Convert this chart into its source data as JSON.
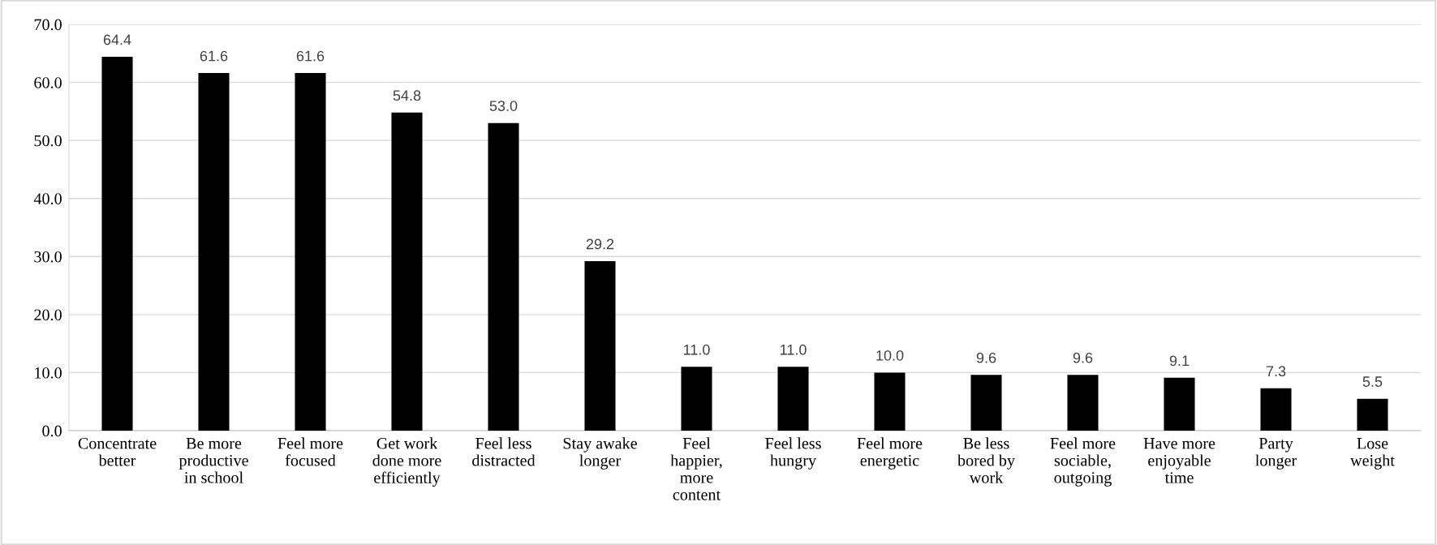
{
  "chart_data": {
    "type": "bar",
    "categories": [
      "Concentrate\nbetter",
      "Be more\nproductive\nin school",
      "Feel more\nfocused",
      "Get work\ndone more\nefficiently",
      "Feel less\ndistracted",
      "Stay awake\nlonger",
      "Feel\nhappier,\nmore\ncontent",
      "Feel less\nhungry",
      "Feel more\nenergetic",
      "Be less\nbored by\nwork",
      "Feel more\nsociable,\noutgoing",
      "Have more\nenjoyable\ntime",
      "Party\nlonger",
      "Lose\nweight"
    ],
    "values": [
      64.4,
      61.6,
      61.6,
      54.8,
      53.0,
      29.2,
      11.0,
      11.0,
      10.0,
      9.6,
      9.6,
      9.1,
      7.3,
      5.5
    ],
    "value_labels": [
      "64.4",
      "61.6",
      "61.6",
      "54.8",
      "53.0",
      "29.2",
      "11.0",
      "11.0",
      "10.0",
      "9.6",
      "9.6",
      "9.1",
      "7.3",
      "5.5"
    ],
    "color": "#000000",
    "ylim": [
      0,
      70
    ],
    "yticks": [
      {
        "value": 0,
        "label": "0.0"
      },
      {
        "value": 10,
        "label": "10.0"
      },
      {
        "value": 20,
        "label": "20.0"
      },
      {
        "value": 30,
        "label": "30.0"
      },
      {
        "value": 40,
        "label": "40.0"
      },
      {
        "value": 50,
        "label": "50.0"
      },
      {
        "value": 60,
        "label": "60.0"
      },
      {
        "value": 70,
        "label": "70.0"
      }
    ],
    "grid": "y",
    "legend": false
  }
}
